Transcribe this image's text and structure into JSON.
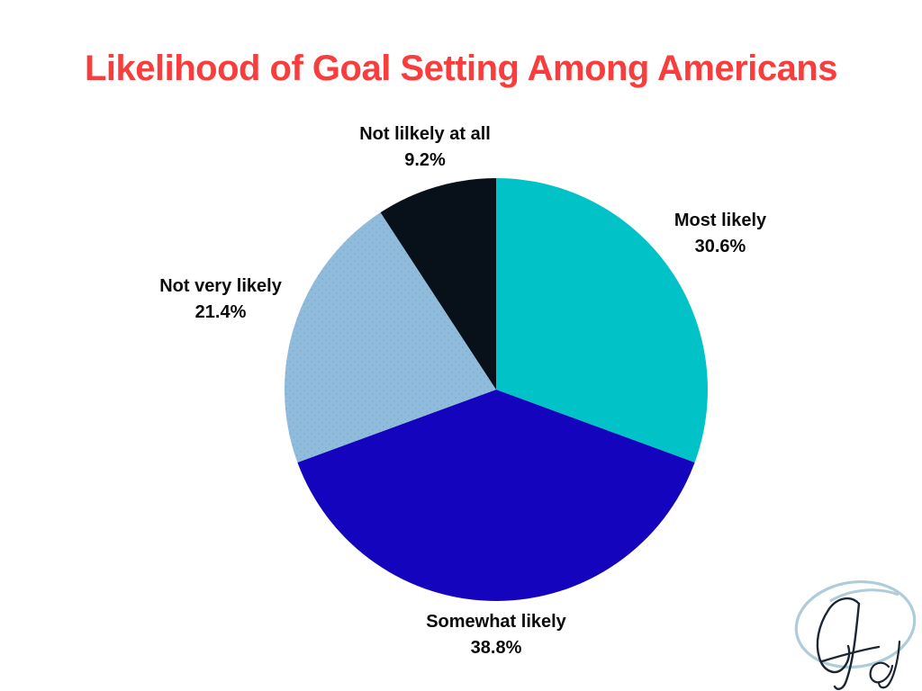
{
  "title": "Likelihood of Goal Setting Among Americans",
  "title_color": "#F93C3C",
  "background_color": "#FFFFFF",
  "label_text_color": "#0B0B0B",
  "chart_data": {
    "type": "pie",
    "title": "Likelihood of Goal Setting Among Americans",
    "start_angle_deg": 0,
    "direction": "clockwise",
    "legend": "none",
    "labels_position": "outside",
    "slices": [
      {
        "label": "Most likely",
        "value": 30.6,
        "pct_label": "30.6%",
        "color": "#00C2C7"
      },
      {
        "label": "Somewhat likely",
        "value": 38.8,
        "pct_label": "38.8%",
        "color": "#1404BE"
      },
      {
        "label": "Not very likely",
        "value": 21.4,
        "pct_label": "21.4%",
        "color": "#8FBCDB",
        "texture": "dots"
      },
      {
        "label": "Not lilkely at all",
        "value": 9.2,
        "pct_label": "9.2%",
        "color": "#081019"
      }
    ],
    "texture_dot_color": "#7E92CC"
  },
  "logo": {
    "monogram": "Gd",
    "ellipse_color": "#AECCD9",
    "ink_color": "#1C2532"
  }
}
